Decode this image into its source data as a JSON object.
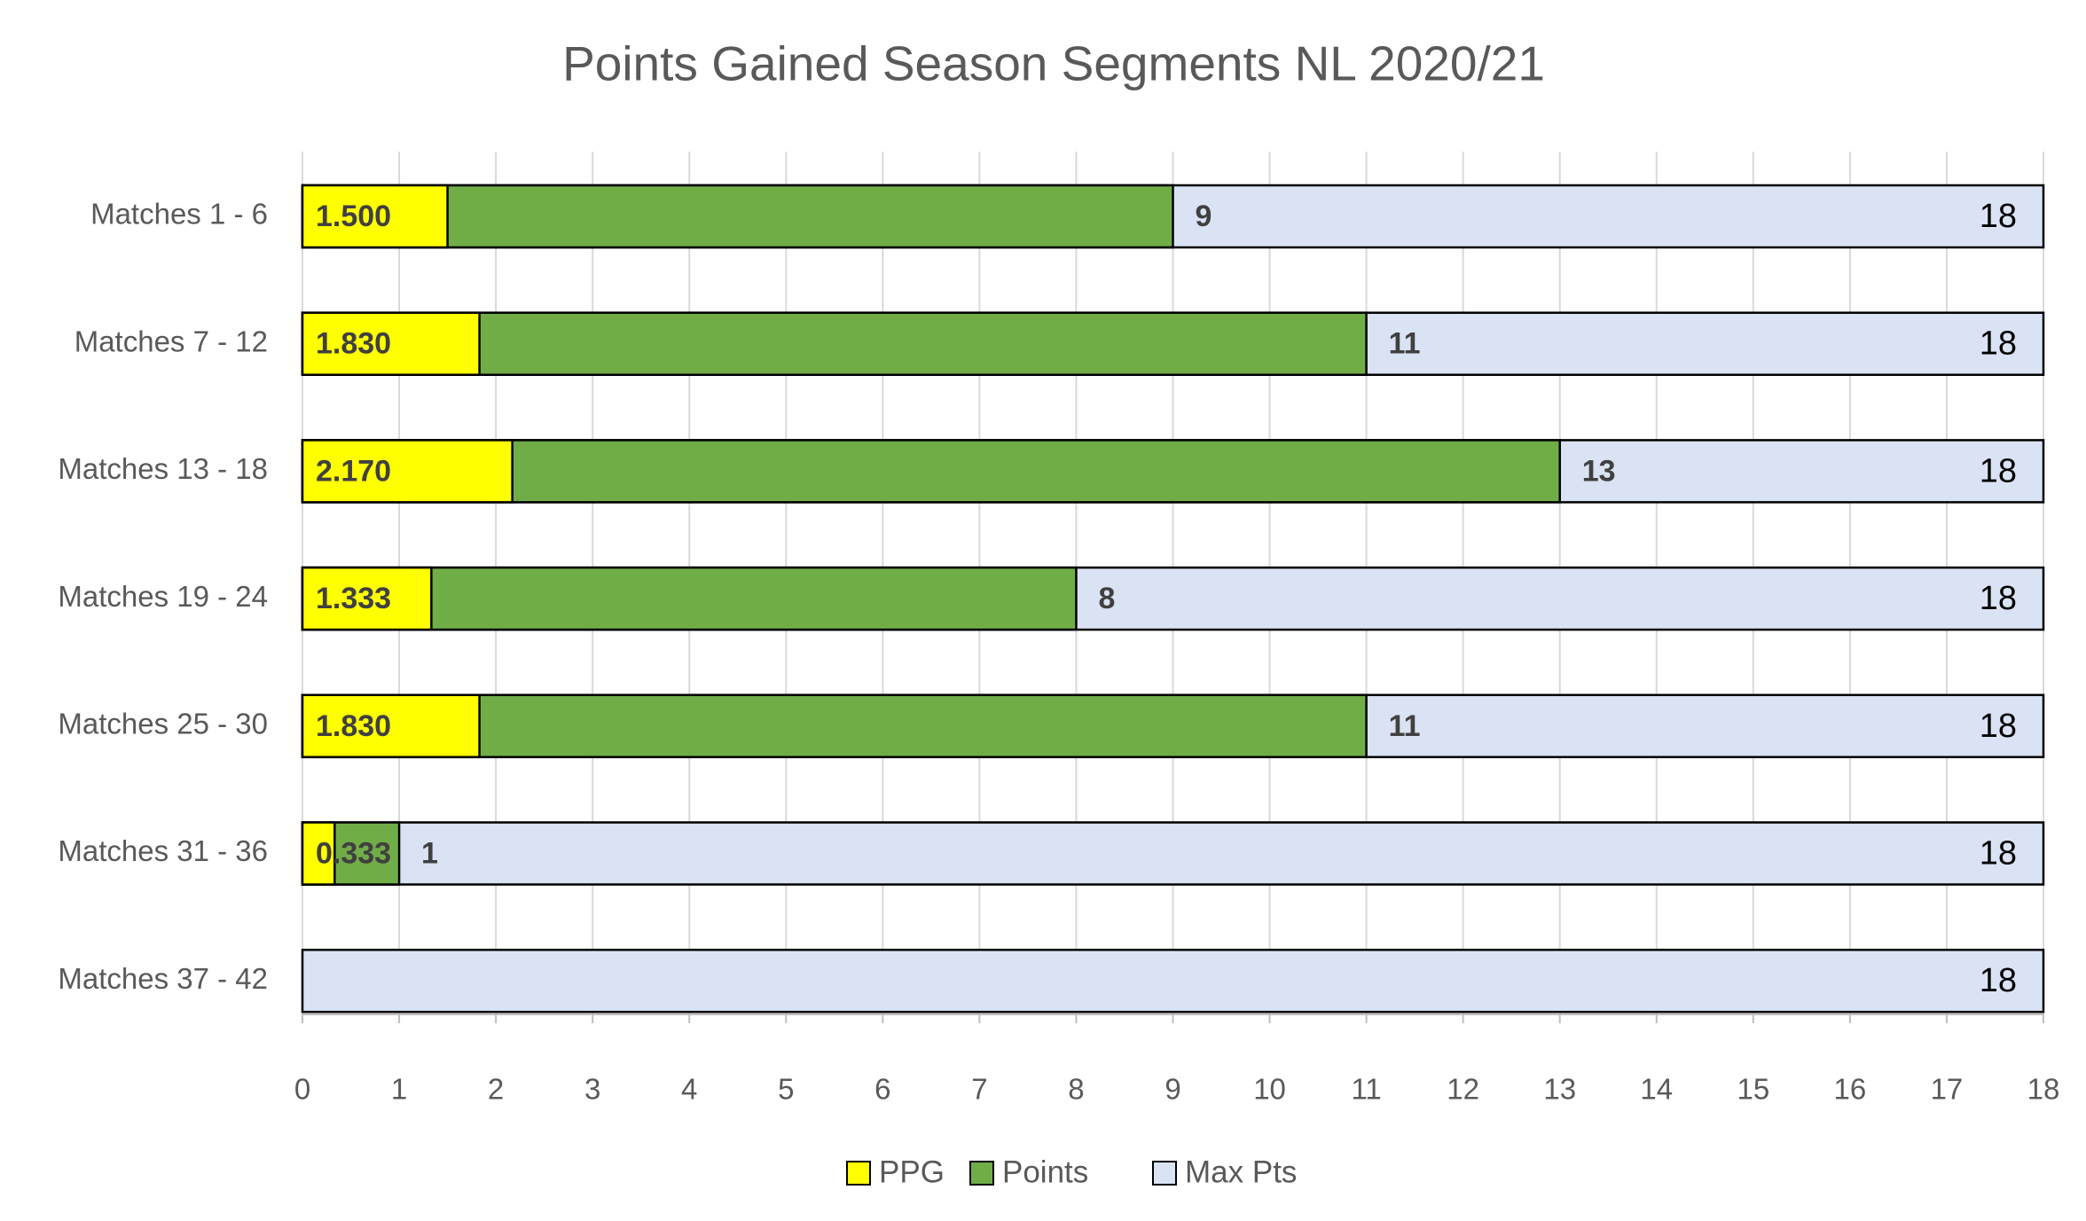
{
  "chart_data": {
    "type": "bar",
    "orientation": "horizontal",
    "overlap": true,
    "title": "Points Gained Season Segments NL 2020/21",
    "categories": [
      "Matches 1 - 6",
      "Matches 7 - 12",
      "Matches 13 - 18",
      "Matches 19 - 24",
      "Matches 25 - 30",
      "Matches 31 - 36",
      "Matches 37 - 42"
    ],
    "series": [
      {
        "name": "PPG",
        "color": "#ffff00",
        "values": [
          1.5,
          1.83,
          2.17,
          1.333,
          1.83,
          0.333,
          null
        ],
        "value_labels": [
          "1.500",
          "1.830",
          "2.170",
          "1.333",
          "1.830",
          "0.333",
          null
        ]
      },
      {
        "name": "Points",
        "color": "#70ad47",
        "values": [
          9,
          11,
          13,
          8,
          11,
          1,
          null
        ]
      },
      {
        "name": "Max Pts",
        "color": "#dae3f3",
        "values": [
          18,
          18,
          18,
          18,
          18,
          18,
          18
        ]
      }
    ],
    "xlim": [
      0,
      18
    ],
    "xticks": [
      0,
      1,
      2,
      3,
      4,
      5,
      6,
      7,
      8,
      9,
      10,
      11,
      12,
      13,
      14,
      15,
      16,
      17,
      18
    ],
    "grid": true,
    "legend": "bottom"
  }
}
